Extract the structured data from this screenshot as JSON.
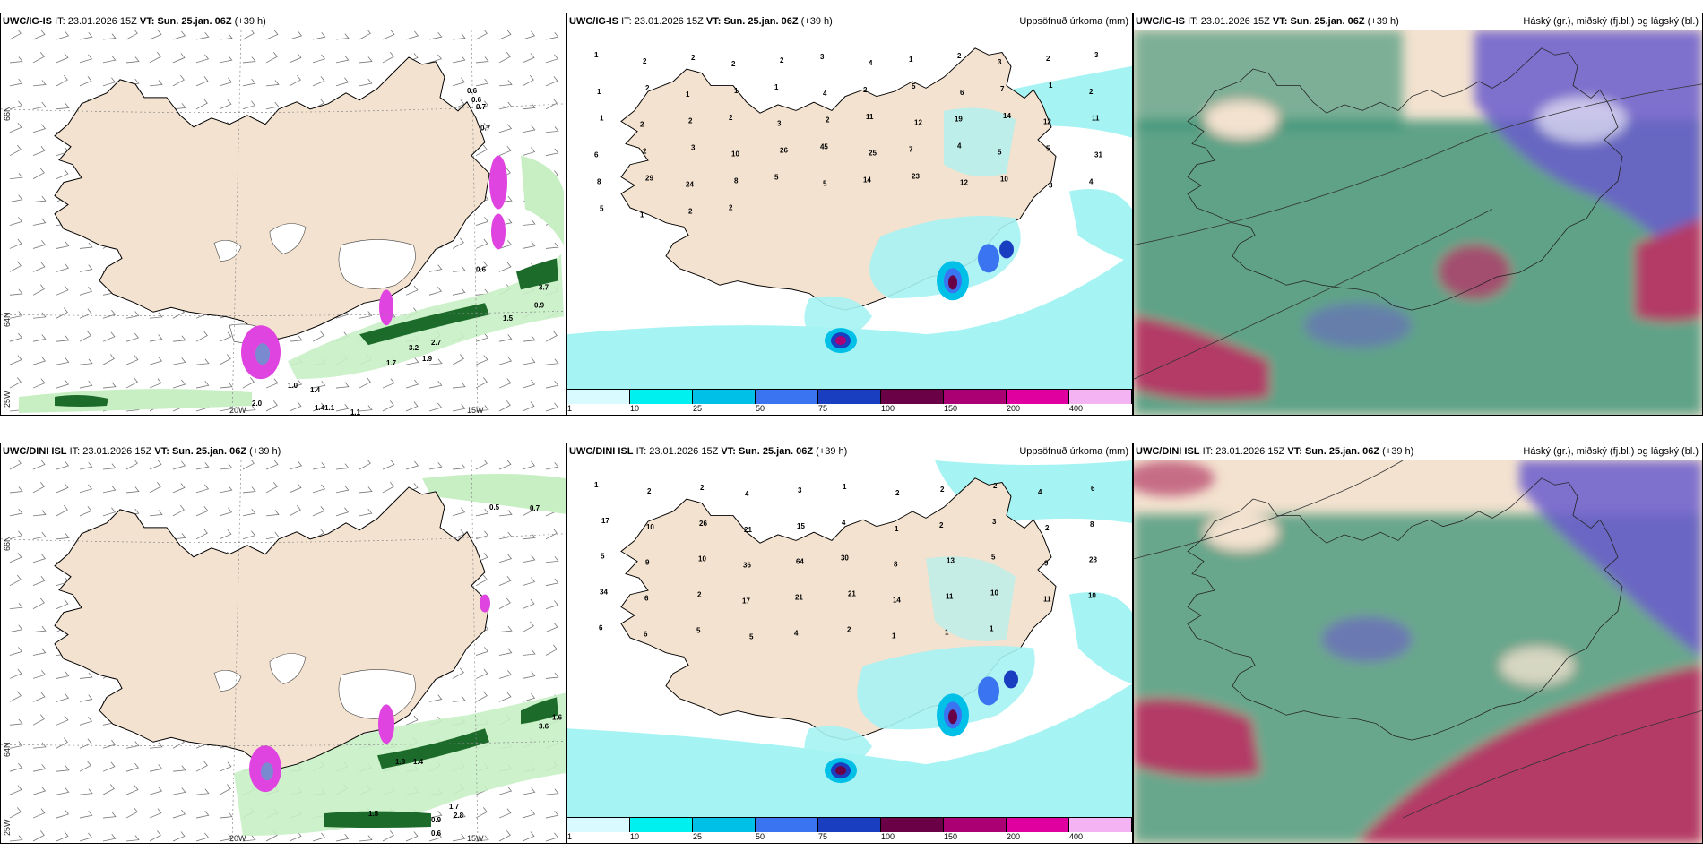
{
  "colors": {
    "land": "#f3e2cf",
    "sea": "#ffffff",
    "precip_light": "#a6f3f3",
    "precip_pink": "#e044e0",
    "green_light": "#c8efc4",
    "green_dark": "#1c6b2a",
    "cloud_high": "#6a5ccc",
    "cloud_mid": "#b33a66",
    "cloud_low": "#2f8d70"
  },
  "rows": [
    {
      "model": "UWC/IG-IS",
      "it_label": "IT:",
      "it_value": "23.01.2026 15Z",
      "vt_label": "VT:",
      "vt_value": "Sun. 25.jan. 06Z",
      "lead": "(+39 h)"
    },
    {
      "model": "UWC/DINI ISL",
      "it_label": "IT:",
      "it_value": "23.01.2026 15Z",
      "vt_label": "VT:",
      "vt_value": "Sun. 25.jan. 06Z",
      "lead": "(+39 h)"
    }
  ],
  "panel_titles": {
    "precip": "Uppsöfnuð úrkoma (mm)",
    "clouds": "Háský (gr.), miðský (fj.bl.) og lágský (bl.)"
  },
  "axes": {
    "lat_labels": [
      "66N",
      "64N",
      "25W"
    ],
    "lon_labels": [
      "20W",
      "15W"
    ]
  },
  "legend": {
    "ticks": [
      "1",
      "10",
      "25",
      "50",
      "75",
      "100",
      "150",
      "200",
      "400"
    ],
    "colors": [
      "#d9fbff",
      "#00f0f0",
      "#00c0e8",
      "#3a74f0",
      "#1a3ec0",
      "#6a0046",
      "#aa0074",
      "#e000a0",
      "#f4b4f4"
    ]
  },
  "wind_map_values": {
    "top": [
      "0.6",
      "0.6",
      "0.7",
      "0.7",
      "0.6",
      "3.7",
      "0.9",
      "1.5",
      "1.7",
      "1.9",
      "3.2",
      "2.7",
      "1.0",
      "1.4",
      "1.41.1",
      "1.1",
      "2.0"
    ],
    "bottom": [
      "0.5",
      "0.7",
      "1.6",
      "1.8",
      "1.4",
      "1.7",
      "2.8",
      "1.5",
      "0.9",
      "0.6",
      "3.6"
    ]
  },
  "precip_map_values": {
    "top": [
      "1",
      "2",
      "2",
      "2",
      "2",
      "3",
      "4",
      "1",
      "2",
      "3",
      "2",
      "3",
      "1",
      "2",
      "1",
      "1",
      "1",
      "4",
      "2",
      "5",
      "6",
      "7",
      "1",
      "2",
      "1",
      "2",
      "2",
      "2",
      "3",
      "2",
      "11",
      "12",
      "19",
      "14",
      "12",
      "11",
      "6",
      "2",
      "3",
      "10",
      "26",
      "45",
      "25",
      "7",
      "4",
      "5",
      "5",
      "31",
      "8",
      "29",
      "24",
      "8",
      "5",
      "5",
      "14",
      "23",
      "12",
      "10",
      "3",
      "4",
      "5",
      "1",
      "2",
      "2"
    ],
    "bottom": [
      "1",
      "2",
      "2",
      "4",
      "3",
      "1",
      "2",
      "2",
      "2",
      "4",
      "6",
      "17",
      "10",
      "26",
      "21",
      "15",
      "4",
      "1",
      "2",
      "3",
      "2",
      "8",
      "5",
      "9",
      "10",
      "36",
      "64",
      "30",
      "8",
      "13",
      "5",
      "9",
      "28",
      "34",
      "6",
      "2",
      "17",
      "21",
      "21",
      "14",
      "11",
      "10",
      "11",
      "10",
      "6",
      "6",
      "5",
      "5",
      "4",
      "2",
      "1",
      "1",
      "1"
    ]
  }
}
